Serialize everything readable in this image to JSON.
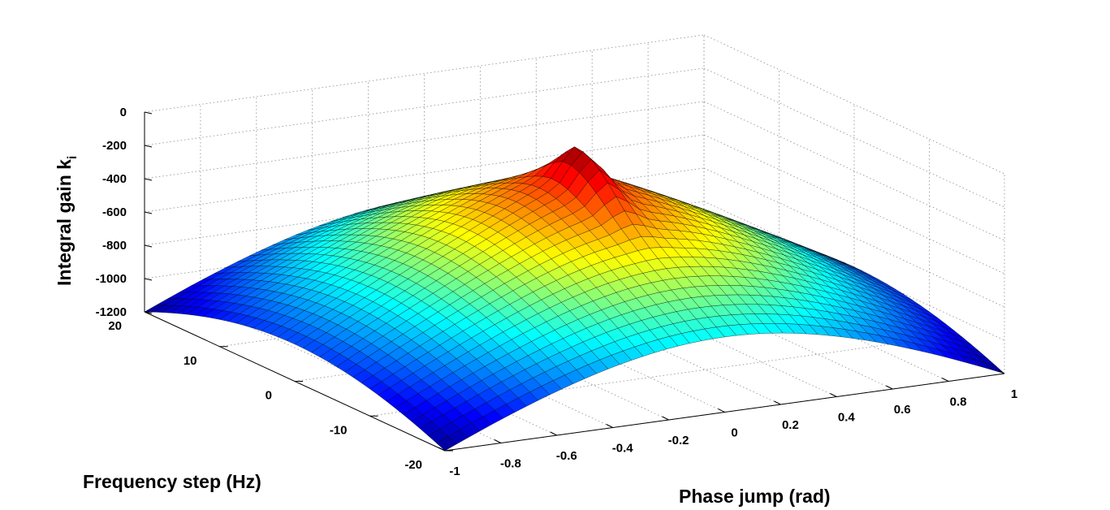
{
  "chart_data": {
    "type": "surface",
    "title": "",
    "xlabel": "Phase jump (rad)",
    "ylabel": "Frequency step (Hz)",
    "zlabel_text": "Integral gain k",
    "zlabel_subscript": "i",
    "xlim": [
      -1,
      1
    ],
    "ylim": [
      -20,
      20
    ],
    "zlim": [
      -1200,
      0
    ],
    "x_ticks": [
      "-1",
      "-0.8",
      "-0.6",
      "-0.4",
      "-0.2",
      "0",
      "0.2",
      "0.4",
      "0.6",
      "0.8",
      "1"
    ],
    "y_ticks": [
      "-20",
      "-10",
      "0",
      "10",
      "20"
    ],
    "z_ticks": [
      "0",
      "-200",
      "-400",
      "-600",
      "-800",
      "-1000",
      "-1200"
    ],
    "grid": true,
    "colormap": "jet",
    "colormap_stops": [
      "#00008f",
      "#0000ff",
      "#00ffff",
      "#ffff00",
      "#ff0000",
      "#800000"
    ],
    "surface_samples": [
      {
        "x": -1,
        "y": -20,
        "z": -1200
      },
      {
        "x": -1,
        "y": 20,
        "z": -1200
      },
      {
        "x": 1,
        "y": -20,
        "z": -1200
      },
      {
        "x": 1,
        "y": 20,
        "z": -1200
      },
      {
        "x": -1,
        "y": 0,
        "z": -680
      },
      {
        "x": 1,
        "y": 0,
        "z": -680
      },
      {
        "x": 0,
        "y": -20,
        "z": -780
      },
      {
        "x": 0,
        "y": 20,
        "z": -780
      },
      {
        "x": 0,
        "y": 0,
        "z": -160
      }
    ]
  }
}
